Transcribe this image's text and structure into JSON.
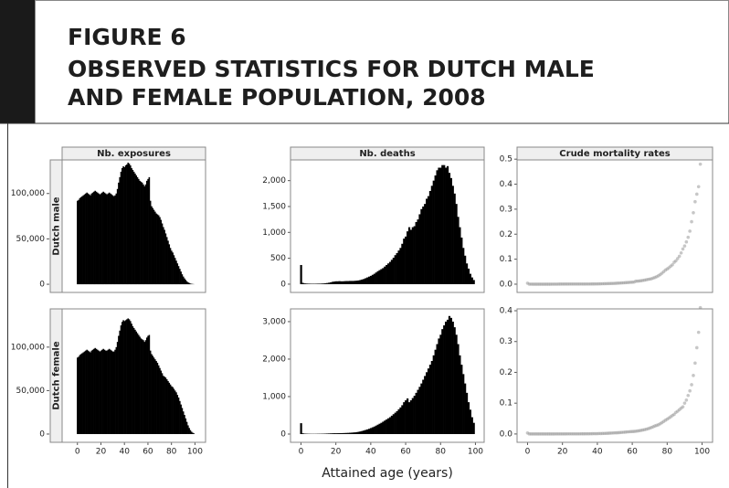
{
  "header": {
    "figure": "FIGURE 6",
    "title_lines": [
      "OBSERVED STATISTICS FOR DUTCH MALE",
      "AND FEMALE POPULATION, 2008"
    ]
  },
  "chart_data": [
    {
      "type": "bar",
      "title": "Nb. exposures",
      "row_label": "Dutch male",
      "color": "#000000",
      "x": [
        0,
        1,
        2,
        3,
        4,
        5,
        6,
        7,
        8,
        9,
        10,
        11,
        12,
        13,
        14,
        15,
        16,
        17,
        18,
        19,
        20,
        21,
        22,
        23,
        24,
        25,
        26,
        27,
        28,
        29,
        30,
        31,
        32,
        33,
        34,
        35,
        36,
        37,
        38,
        39,
        40,
        41,
        42,
        43,
        44,
        45,
        46,
        47,
        48,
        49,
        50,
        51,
        52,
        53,
        54,
        55,
        56,
        57,
        58,
        59,
        60,
        61,
        62,
        63,
        64,
        65,
        66,
        67,
        68,
        69,
        70,
        71,
        72,
        73,
        74,
        75,
        76,
        77,
        78,
        79,
        80,
        81,
        82,
        83,
        84,
        85,
        86,
        87,
        88,
        89,
        90,
        91,
        92,
        93,
        94,
        95,
        96,
        97,
        98,
        99
      ],
      "values": [
        92000,
        93000,
        95000,
        96000,
        97000,
        98000,
        99000,
        100000,
        101000,
        100000,
        99000,
        98000,
        100000,
        101000,
        102000,
        103000,
        102000,
        101000,
        100000,
        99000,
        100000,
        101000,
        102000,
        101000,
        100000,
        99000,
        100000,
        101000,
        100000,
        99000,
        98000,
        97000,
        98000,
        100000,
        105000,
        112000,
        118000,
        124000,
        128000,
        130000,
        129000,
        131000,
        132000,
        134000,
        133000,
        131000,
        128000,
        126000,
        124000,
        122000,
        120000,
        118000,
        116000,
        114000,
        113000,
        112000,
        110000,
        108000,
        110000,
        114000,
        116000,
        118000,
        92000,
        86000,
        84000,
        82000,
        80000,
        78000,
        77000,
        76000,
        74000,
        71000,
        67000,
        63000,
        60000,
        56000,
        52000,
        48000,
        44000,
        40000,
        37000,
        35000,
        32000,
        29000,
        26000,
        23000,
        20000,
        17000,
        14000,
        11000,
        8500,
        6500,
        4800,
        3300,
        2200,
        1400,
        800,
        450,
        250,
        120
      ],
      "xlim": [
        -13,
        109
      ],
      "ylim": [
        -9000,
        137000
      ],
      "yticks": [
        0,
        {
          "value": 50000,
          "label": "50,000"
        },
        {
          "value": 100000,
          "label": "100,000"
        }
      ]
    },
    {
      "type": "bar",
      "title": "Nb. deaths",
      "color": "#000000",
      "x": [
        0,
        1,
        2,
        3,
        4,
        5,
        6,
        7,
        8,
        9,
        10,
        11,
        12,
        13,
        14,
        15,
        16,
        17,
        18,
        19,
        20,
        21,
        22,
        23,
        24,
        25,
        26,
        27,
        28,
        29,
        30,
        31,
        32,
        33,
        34,
        35,
        36,
        37,
        38,
        39,
        40,
        41,
        42,
        43,
        44,
        45,
        46,
        47,
        48,
        49,
        50,
        51,
        52,
        53,
        54,
        55,
        56,
        57,
        58,
        59,
        60,
        61,
        62,
        63,
        64,
        65,
        66,
        67,
        68,
        69,
        70,
        71,
        72,
        73,
        74,
        75,
        76,
        77,
        78,
        79,
        80,
        81,
        82,
        83,
        84,
        85,
        86,
        87,
        88,
        89,
        90,
        91,
        92,
        93,
        94,
        95,
        96,
        97,
        98,
        99
      ],
      "values": [
        370,
        25,
        15,
        12,
        10,
        9,
        8,
        8,
        8,
        9,
        10,
        10,
        12,
        14,
        18,
        22,
        28,
        35,
        45,
        50,
        55,
        55,
        58,
        55,
        55,
        58,
        60,
        60,
        62,
        62,
        62,
        65,
        68,
        72,
        80,
        90,
        100,
        115,
        130,
        145,
        160,
        180,
        200,
        225,
        250,
        270,
        290,
        310,
        340,
        370,
        400,
        430,
        470,
        510,
        560,
        600,
        650,
        700,
        780,
        880,
        920,
        1020,
        1100,
        1050,
        1100,
        1120,
        1200,
        1250,
        1350,
        1450,
        1500,
        1550,
        1650,
        1700,
        1800,
        1900,
        2000,
        2100,
        2200,
        2250,
        2250,
        2300,
        2300,
        2250,
        2280,
        2150,
        2050,
        1900,
        1750,
        1550,
        1300,
        1100,
        900,
        700,
        550,
        400,
        300,
        200,
        130,
        80
      ],
      "xlim": [
        -6,
        105
      ],
      "ylim": [
        -160,
        2400
      ],
      "yticks": [
        0,
        500,
        {
          "value": 1000,
          "label": "1,000"
        },
        {
          "value": 1500,
          "label": "1,500"
        },
        {
          "value": 2000,
          "label": "2,000"
        }
      ]
    },
    {
      "type": "scatter",
      "title": "Crude mortality rates",
      "color": "#999999",
      "x": [
        0,
        1,
        2,
        3,
        4,
        5,
        6,
        7,
        8,
        9,
        10,
        11,
        12,
        13,
        14,
        15,
        16,
        17,
        18,
        19,
        20,
        21,
        22,
        23,
        24,
        25,
        26,
        27,
        28,
        29,
        30,
        31,
        32,
        33,
        34,
        35,
        36,
        37,
        38,
        39,
        40,
        41,
        42,
        43,
        44,
        45,
        46,
        47,
        48,
        49,
        50,
        51,
        52,
        53,
        54,
        55,
        56,
        57,
        58,
        59,
        60,
        61,
        62,
        63,
        64,
        65,
        66,
        67,
        68,
        69,
        70,
        71,
        72,
        73,
        74,
        75,
        76,
        77,
        78,
        79,
        80,
        81,
        82,
        83,
        84,
        85,
        86,
        87,
        88,
        89,
        90,
        91,
        92,
        93,
        94,
        95,
        96,
        97,
        98,
        99
      ],
      "values": [
        0.004,
        0.0003,
        0.0002,
        0.0001,
        0.0001,
        0.0001,
        0.0001,
        0.0001,
        0.0001,
        0.0001,
        0.0001,
        0.0001,
        0.0001,
        0.0001,
        0.0002,
        0.0002,
        0.0003,
        0.0003,
        0.0005,
        0.0005,
        0.0006,
        0.0005,
        0.0006,
        0.0005,
        0.0006,
        0.0006,
        0.0006,
        0.0006,
        0.0006,
        0.0006,
        0.0006,
        0.0007,
        0.0007,
        0.0007,
        0.0008,
        0.0008,
        0.0008,
        0.0009,
        0.001,
        0.0011,
        0.0012,
        0.0014,
        0.0015,
        0.0017,
        0.0019,
        0.0021,
        0.0023,
        0.0025,
        0.0027,
        0.003,
        0.0033,
        0.0036,
        0.0041,
        0.0045,
        0.005,
        0.0054,
        0.0059,
        0.0065,
        0.0071,
        0.0077,
        0.0079,
        0.0086,
        0.012,
        0.0122,
        0.0131,
        0.0137,
        0.015,
        0.016,
        0.0175,
        0.0191,
        0.0203,
        0.0218,
        0.0246,
        0.027,
        0.03,
        0.0339,
        0.0385,
        0.0438,
        0.05,
        0.0563,
        0.0608,
        0.0657,
        0.0719,
        0.0776,
        0.0877,
        0.0935,
        0.1025,
        0.1118,
        0.125,
        0.1409,
        0.153,
        0.169,
        0.1875,
        0.2121,
        0.25,
        0.2857,
        0.33,
        0.36,
        0.39,
        0.48
      ],
      "xlim": [
        -6,
        106
      ],
      "ylim": [
        -0.033,
        0.497
      ],
      "yticks": [
        {
          "value": 0,
          "label": "0.0"
        },
        0.1,
        0.2,
        0.3,
        0.4,
        0.5
      ]
    },
    {
      "type": "bar",
      "row_label": "Dutch female",
      "color": "#000000",
      "x": [
        0,
        1,
        2,
        3,
        4,
        5,
        6,
        7,
        8,
        9,
        10,
        11,
        12,
        13,
        14,
        15,
        16,
        17,
        18,
        19,
        20,
        21,
        22,
        23,
        24,
        25,
        26,
        27,
        28,
        29,
        30,
        31,
        32,
        33,
        34,
        35,
        36,
        37,
        38,
        39,
        40,
        41,
        42,
        43,
        44,
        45,
        46,
        47,
        48,
        49,
        50,
        51,
        52,
        53,
        54,
        55,
        56,
        57,
        58,
        59,
        60,
        61,
        62,
        63,
        64,
        65,
        66,
        67,
        68,
        69,
        70,
        71,
        72,
        73,
        74,
        75,
        76,
        77,
        78,
        79,
        80,
        81,
        82,
        83,
        84,
        85,
        86,
        87,
        88,
        89,
        90,
        91,
        92,
        93,
        94,
        95,
        96,
        97,
        98,
        99
      ],
      "values": [
        88000,
        89000,
        91000,
        92000,
        93000,
        94000,
        95000,
        96000,
        97000,
        96000,
        95000,
        94000,
        96000,
        97000,
        98000,
        99000,
        98000,
        97000,
        96000,
        95000,
        96000,
        97000,
        98000,
        97000,
        96000,
        96000,
        97000,
        98000,
        97000,
        96000,
        95000,
        95000,
        97000,
        100000,
        106000,
        113000,
        119000,
        125000,
        129000,
        131000,
        130000,
        131000,
        132000,
        133000,
        132000,
        130000,
        127000,
        124000,
        122000,
        120000,
        118000,
        116000,
        114000,
        112000,
        110000,
        109000,
        108000,
        106000,
        108000,
        111000,
        113000,
        114000,
        96000,
        92000,
        90000,
        88000,
        86000,
        84000,
        82000,
        79000,
        76000,
        73000,
        70000,
        67000,
        66000,
        65000,
        63000,
        61000,
        59000,
        57000,
        55000,
        54000,
        52000,
        50000,
        48000,
        45000,
        42000,
        38000,
        34000,
        30000,
        26000,
        22000,
        18000,
        14000,
        10000,
        7000,
        4500,
        2700,
        1500,
        800
      ],
      "xlim": [
        -13,
        109
      ],
      "ylim": [
        -9500,
        144000
      ],
      "yticks": [
        0,
        {
          "value": 50000,
          "label": "50,000"
        },
        {
          "value": 100000,
          "label": "100,000"
        }
      ],
      "xticks": [
        0,
        20,
        40,
        60,
        80,
        100
      ]
    },
    {
      "type": "bar",
      "color": "#000000",
      "xlabel": "Attained age (years)",
      "x": [
        0,
        1,
        2,
        3,
        4,
        5,
        6,
        7,
        8,
        9,
        10,
        11,
        12,
        13,
        14,
        15,
        16,
        17,
        18,
        19,
        20,
        21,
        22,
        23,
        24,
        25,
        26,
        27,
        28,
        29,
        30,
        31,
        32,
        33,
        34,
        35,
        36,
        37,
        38,
        39,
        40,
        41,
        42,
        43,
        44,
        45,
        46,
        47,
        48,
        49,
        50,
        51,
        52,
        53,
        54,
        55,
        56,
        57,
        58,
        59,
        60,
        61,
        62,
        63,
        64,
        65,
        66,
        67,
        68,
        69,
        70,
        71,
        72,
        73,
        74,
        75,
        76,
        77,
        78,
        79,
        80,
        81,
        82,
        83,
        84,
        85,
        86,
        87,
        88,
        89,
        90,
        91,
        92,
        93,
        94,
        95,
        96,
        97,
        98,
        99
      ],
      "values": [
        290,
        20,
        12,
        10,
        8,
        7,
        6,
        6,
        6,
        7,
        8,
        8,
        9,
        10,
        12,
        14,
        16,
        18,
        20,
        22,
        22,
        23,
        24,
        25,
        26,
        28,
        30,
        32,
        35,
        38,
        42,
        46,
        52,
        60,
        70,
        82,
        95,
        110,
        125,
        140,
        160,
        180,
        200,
        225,
        250,
        275,
        300,
        330,
        360,
        390,
        420,
        450,
        490,
        530,
        570,
        610,
        660,
        710,
        770,
        850,
        900,
        950,
        850,
        900,
        960,
        1020,
        1100,
        1180,
        1260,
        1350,
        1450,
        1550,
        1650,
        1750,
        1850,
        1950,
        2100,
        2250,
        2400,
        2550,
        2650,
        2800,
        2900,
        3000,
        3050,
        3150,
        3100,
        3000,
        2850,
        2650,
        2400,
        2100,
        1850,
        1600,
        1350,
        1100,
        850,
        650,
        450,
        300
      ],
      "xlim": [
        -6,
        105
      ],
      "ylim": [
        -220,
        3340
      ],
      "yticks": [
        0,
        {
          "value": 1000,
          "label": "1,000"
        },
        {
          "value": 2000,
          "label": "2,000"
        },
        {
          "value": 3000,
          "label": "3,000"
        }
      ],
      "xticks": [
        0,
        20,
        40,
        60,
        80,
        100
      ]
    },
    {
      "type": "scatter",
      "color": "#999999",
      "x": [
        0,
        1,
        2,
        3,
        4,
        5,
        6,
        7,
        8,
        9,
        10,
        11,
        12,
        13,
        14,
        15,
        16,
        17,
        18,
        19,
        20,
        21,
        22,
        23,
        24,
        25,
        26,
        27,
        28,
        29,
        30,
        31,
        32,
        33,
        34,
        35,
        36,
        37,
        38,
        39,
        40,
        41,
        42,
        43,
        44,
        45,
        46,
        47,
        48,
        49,
        50,
        51,
        52,
        53,
        54,
        55,
        56,
        57,
        58,
        59,
        60,
        61,
        62,
        63,
        64,
        65,
        66,
        67,
        68,
        69,
        70,
        71,
        72,
        73,
        74,
        75,
        76,
        77,
        78,
        79,
        80,
        81,
        82,
        83,
        84,
        85,
        86,
        87,
        88,
        89,
        90,
        91,
        92,
        93,
        94,
        95,
        96,
        97,
        98,
        99
      ],
      "values": [
        0.0033,
        0.0002,
        0.0001,
        0.0001,
        0.0001,
        0.0001,
        0.0001,
        0.0001,
        0.0001,
        0.0001,
        0.0001,
        0.0001,
        0.0001,
        0.0001,
        0.0001,
        0.0001,
        0.0002,
        0.0002,
        0.0002,
        0.0002,
        0.0002,
        0.0002,
        0.0002,
        0.0003,
        0.0003,
        0.0003,
        0.0003,
        0.0003,
        0.0004,
        0.0004,
        0.0004,
        0.0005,
        0.0005,
        0.0006,
        0.0007,
        0.0007,
        0.0008,
        0.0009,
        0.001,
        0.0011,
        0.0012,
        0.0014,
        0.0015,
        0.0017,
        0.0019,
        0.0021,
        0.0024,
        0.0027,
        0.003,
        0.0033,
        0.0036,
        0.0039,
        0.0043,
        0.0047,
        0.0052,
        0.0056,
        0.0061,
        0.0067,
        0.0071,
        0.0077,
        0.008,
        0.0083,
        0.0089,
        0.0098,
        0.0107,
        0.0116,
        0.0128,
        0.014,
        0.0154,
        0.0171,
        0.0191,
        0.0212,
        0.0236,
        0.0261,
        0.028,
        0.03,
        0.0333,
        0.0369,
        0.0407,
        0.0447,
        0.0482,
        0.0519,
        0.0558,
        0.06,
        0.0635,
        0.07,
        0.0738,
        0.0789,
        0.0838,
        0.0883,
        0.1,
        0.11,
        0.125,
        0.14,
        0.16,
        0.19,
        0.23,
        0.28,
        0.33,
        0.41
      ],
      "xlim": [
        -6,
        106
      ],
      "ylim": [
        -0.027,
        0.406
      ],
      "yticks": [
        {
          "value": 0,
          "label": "0.0"
        },
        0.1,
        0.2,
        0.3,
        0.4
      ],
      "xticks": [
        0,
        20,
        40,
        60,
        80,
        100
      ]
    }
  ]
}
